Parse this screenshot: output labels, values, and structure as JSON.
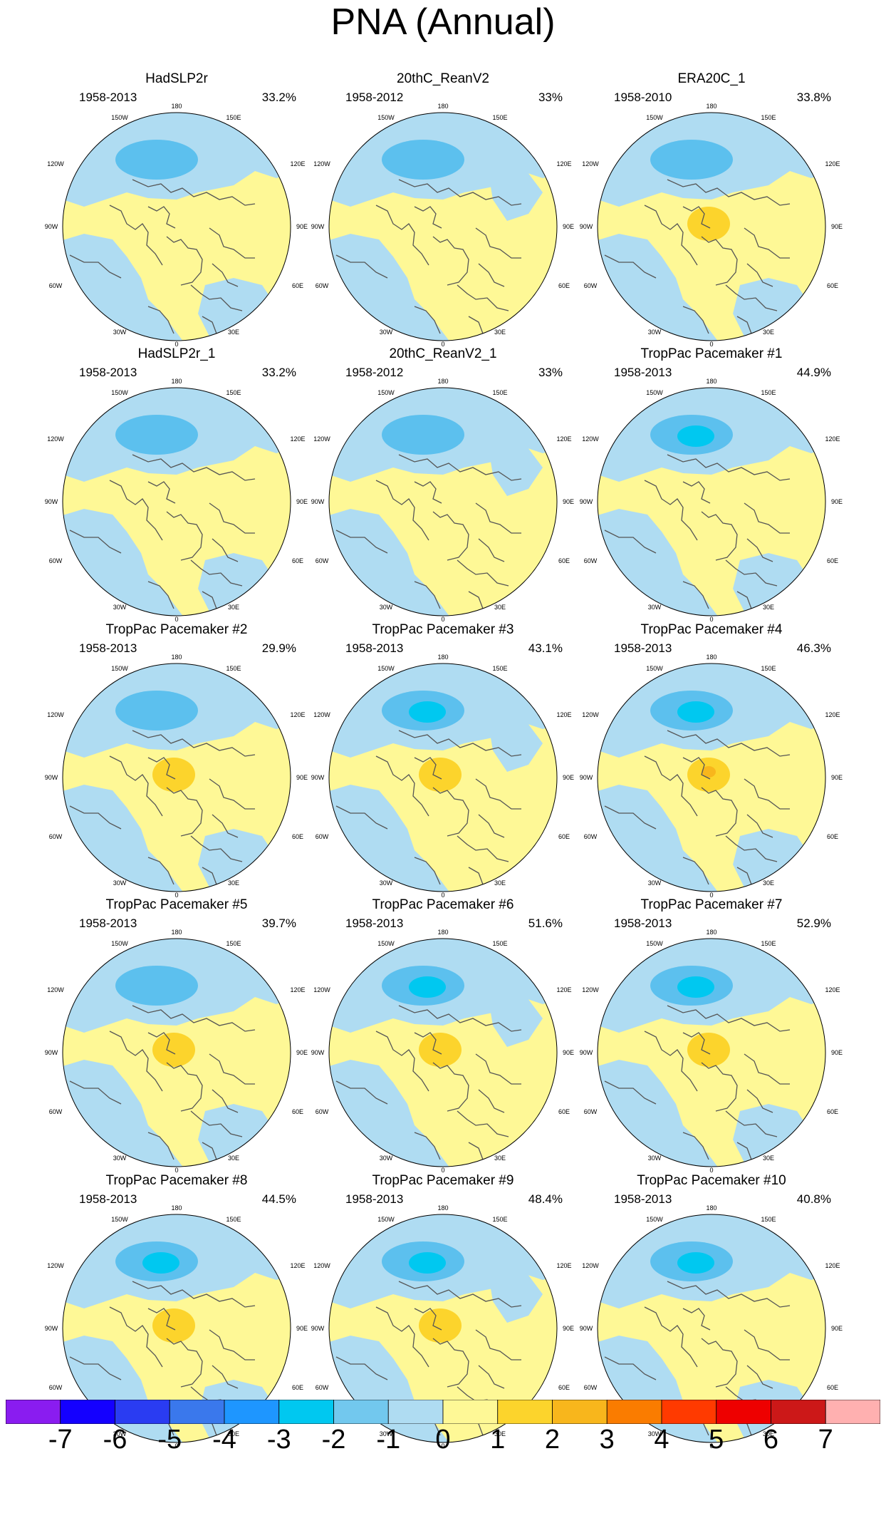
{
  "title": "PNA (Annual)",
  "colors": {
    "cyan": "#00c8f0",
    "blue_dark": "#5cc0ee",
    "blue_light": "#afdcf2",
    "yellow_light": "#fef896",
    "orange_light": "#fcd42c",
    "orange_dark": "#f8b61c",
    "coast": "#555555",
    "rim": "#000000"
  },
  "map_labels": {
    "north": "180",
    "nw": "150W",
    "ne": "150E",
    "wnw": "120W",
    "ene": "120E",
    "west": "90W",
    "east": "90E",
    "wsw": "60W",
    "ese": "60E",
    "sw": "30W",
    "se": "30E",
    "south": "0"
  },
  "panels": [
    {
      "title": "HadSLP2r",
      "period": "1958-2013",
      "pct": "33.2%",
      "low": -2,
      "high": 1
    },
    {
      "title": "20thC_ReanV2",
      "period": "1958-2012",
      "pct": "33%",
      "low": -2,
      "high": 1
    },
    {
      "title": "ERA20C_1",
      "period": "1958-2010",
      "pct": "33.8%",
      "low": -2,
      "high": 2
    },
    {
      "title": "HadSLP2r_1",
      "period": "1958-2013",
      "pct": "33.2%",
      "low": -2,
      "high": 1
    },
    {
      "title": "20thC_ReanV2_1",
      "period": "1958-2012",
      "pct": "33%",
      "low": -2,
      "high": 1
    },
    {
      "title": "TropPac Pacemaker #1",
      "period": "1958-2013",
      "pct": "44.9%",
      "low": -3,
      "high": 1
    },
    {
      "title": "TropPac Pacemaker #2",
      "period": "1958-2013",
      "pct": "29.9%",
      "low": -2,
      "high": 2
    },
    {
      "title": "TropPac Pacemaker #3",
      "period": "1958-2013",
      "pct": "43.1%",
      "low": -3,
      "high": 2
    },
    {
      "title": "TropPac Pacemaker #4",
      "period": "1958-2013",
      "pct": "46.3%",
      "low": -3,
      "high": 3
    },
    {
      "title": "TropPac Pacemaker #5",
      "period": "1958-2013",
      "pct": "39.7%",
      "low": -2,
      "high": 2
    },
    {
      "title": "TropPac Pacemaker #6",
      "period": "1958-2013",
      "pct": "51.6%",
      "low": -3,
      "high": 2
    },
    {
      "title": "TropPac Pacemaker #7",
      "period": "1958-2013",
      "pct": "52.9%",
      "low": -3,
      "high": 2
    },
    {
      "title": "TropPac Pacemaker #8",
      "period": "1958-2013",
      "pct": "44.5%",
      "low": -3,
      "high": 2
    },
    {
      "title": "TropPac Pacemaker #9",
      "period": "1958-2013",
      "pct": "48.4%",
      "low": -3,
      "high": 2
    },
    {
      "title": "TropPac Pacemaker #10",
      "period": "1958-2013",
      "pct": "40.8%",
      "low": -3,
      "high": 1
    }
  ],
  "colorbar": {
    "colors": [
      "#8a1cf0",
      "#1400ff",
      "#2a3cf2",
      "#3a78ec",
      "#1e96ff",
      "#00c8f0",
      "#72c8ee",
      "#afdcf2",
      "#fef896",
      "#fcd42c",
      "#f8b61c",
      "#fa7c00",
      "#ff3a00",
      "#ee0000",
      "#cc1818",
      "#ffb0b0"
    ],
    "labels": [
      "-7",
      "-6",
      "-5",
      "-4",
      "-3",
      "-2",
      "-1",
      "0",
      "1",
      "2",
      "3",
      "4",
      "5",
      "6",
      "7"
    ]
  }
}
